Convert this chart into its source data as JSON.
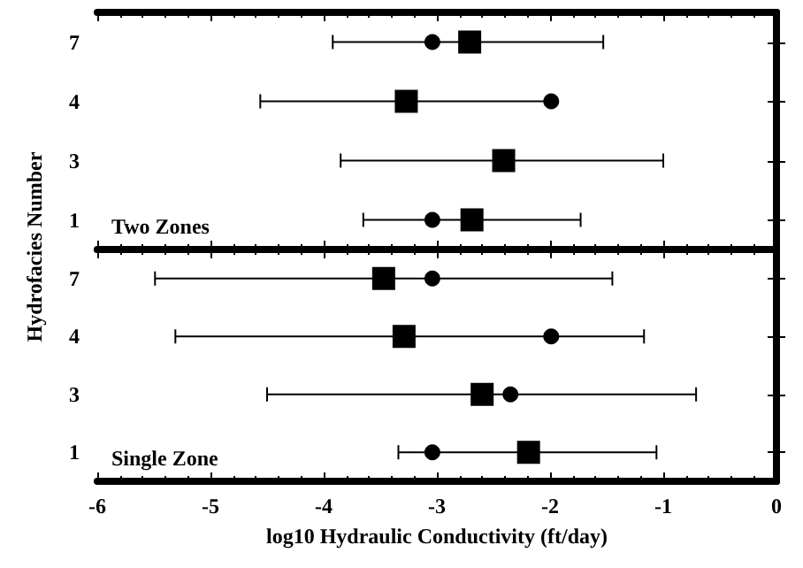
{
  "chart_data": [
    {
      "type": "scatter",
      "orientation": "horizontal",
      "ylabel": "Hydrofacies Number",
      "categories": [
        "7",
        "4",
        "3",
        "1"
      ],
      "xlim": [
        -6,
        0
      ],
      "xticks": [
        -6,
        -5,
        -4,
        -3,
        -2,
        -1,
        0
      ],
      "tick_labels": "y",
      "annotations": [
        "Two Zones"
      ],
      "series": [
        {
          "color": "#000000",
          "marker": "circle",
          "values": [
            -3.04,
            -1.99,
            null,
            -3.04
          ]
        },
        {
          "color": "#000000",
          "marker": "square",
          "values": [
            -2.71,
            -3.27,
            -2.41,
            -2.69
          ],
          "errors": [
            [
              -3.92,
              -1.53
            ],
            [
              -4.56,
              -1.99
            ],
            [
              -3.85,
              -1.0
            ],
            [
              -3.65,
              -1.73
            ]
          ]
        }
      ]
    },
    {
      "type": "scatter",
      "orientation": "horizontal",
      "xlabel": "log10 Hydraulic Conductivity (ft/day)",
      "categories": [
        "7",
        "4",
        "3",
        "1"
      ],
      "xlim": [
        -6,
        0
      ],
      "xticks": [
        -6,
        -5,
        -4,
        -3,
        -2,
        -1,
        0
      ],
      "annotations": [
        "Single Zone"
      ],
      "series": [
        {
          "color": "#000000",
          "marker": "circle",
          "values": [
            -3.04,
            -1.99,
            -2.35,
            -3.04
          ]
        },
        {
          "color": "#000000",
          "marker": "square",
          "values": [
            -3.47,
            -3.29,
            -2.6,
            -2.19
          ],
          "errors": [
            [
              -5.49,
              -1.45
            ],
            [
              -5.31,
              -1.17
            ],
            [
              -4.5,
              -0.71
            ],
            [
              -3.34,
              -1.06
            ]
          ]
        }
      ]
    }
  ]
}
